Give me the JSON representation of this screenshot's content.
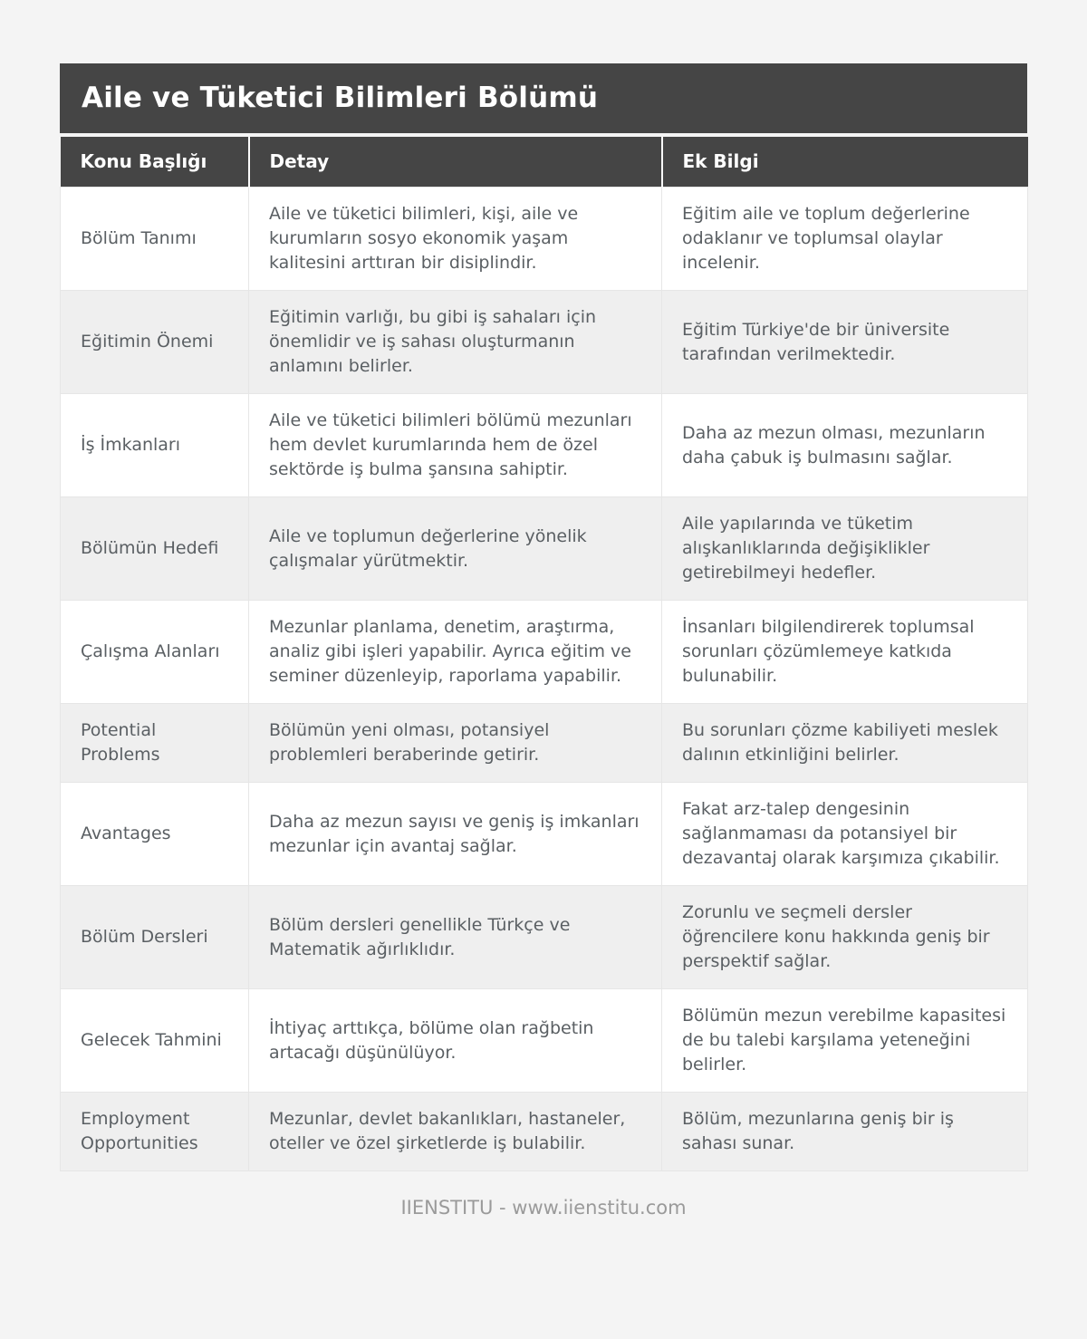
{
  "page": {
    "title": "Aile ve Tüketici Bilimleri Bölümü",
    "footer": "IIENSTITU - www.iienstitu.com"
  },
  "table": {
    "columns": [
      "Konu Başlığı",
      "Detay",
      "Ek Bilgi"
    ],
    "rows": [
      {
        "topic": "Bölüm Tanımı",
        "detail": "Aile ve tüketici bilimleri, kişi, aile ve kurumların sosyo ekonomik yaşam kalitesini arttıran bir disiplindir.",
        "extra": "Eğitim aile ve toplum değerlerine odaklanır ve toplumsal olaylar incelenir."
      },
      {
        "topic": "Eğitimin Önemi",
        "detail": "Eğitimin varlığı, bu gibi iş sahaları için önemlidir ve iş sahası oluşturmanın anlamını belirler.",
        "extra": "Eğitim Türkiye'de bir üniversite tarafından verilmektedir."
      },
      {
        "topic": "İş İmkanları",
        "detail": "Aile ve tüketici bilimleri bölümü mezunları hem devlet kurumlarında hem de özel sektörde iş bulma şansına sahiptir.",
        "extra": "Daha az mezun olması, mezunların daha çabuk iş bulmasını sağlar."
      },
      {
        "topic": "Bölümün Hedefi",
        "detail": "Aile ve toplumun değerlerine yönelik çalışmalar yürütmektir.",
        "extra": "Aile yapılarında ve tüketim alışkanlıklarında değişiklikler getirebilmeyi hedefler."
      },
      {
        "topic": "Çalışma Alanları",
        "detail": "Mezunlar planlama, denetim, araştırma, analiz gibi işleri yapabilir. Ayrıca eğitim ve seminer düzenleyip, raporlama yapabilir.",
        "extra": "İnsanları bilgilendirerek toplumsal sorunları çözümlemeye katkıda bulunabilir."
      },
      {
        "topic": "Potential Problems",
        "detail": "Bölümün yeni olması, potansiyel problemleri beraberinde getirir.",
        "extra": "Bu sorunları çözme kabiliyeti meslek dalının etkinliğini belirler."
      },
      {
        "topic": "Avantages",
        "detail": "Daha az mezun sayısı ve geniş iş imkanları mezunlar için avantaj sağlar.",
        "extra": "Fakat arz-talep dengesinin sağlanmaması da potansiyel bir dezavantaj olarak karşımıza çıkabilir."
      },
      {
        "topic": "Bölüm Dersleri",
        "detail": "Bölüm dersleri genellikle Türkçe ve Matematik ağırlıklıdır.",
        "extra": "Zorunlu ve seçmeli dersler öğrencilere konu hakkında geniş bir perspektif sağlar."
      },
      {
        "topic": "Gelecek Tahmini",
        "detail": "İhtiyaç arttıkça, bölüme olan rağbetin artacağı düşünülüyor.",
        "extra": "Bölümün mezun verebilme kapasitesi de bu talebi karşılama yeteneğini belirler."
      },
      {
        "topic": "Employment Opportunities",
        "detail": "Mezunlar, devlet bakanlıkları, hastaneler, oteller ve özel şirketlerde iş bulabilir.",
        "extra": "Bölüm, mezunlarına geniş bir iş sahası sunar."
      }
    ]
  },
  "colors": {
    "header_bg": "#454545",
    "header_text": "#ffffff",
    "row_bg": "#ffffff",
    "row_alt_bg": "#efefef",
    "cell_text": "#5a5f63",
    "cell_border": "#e6e6e6",
    "page_bg": "#f4f4f4",
    "footer_text": "#9a9a9a"
  }
}
